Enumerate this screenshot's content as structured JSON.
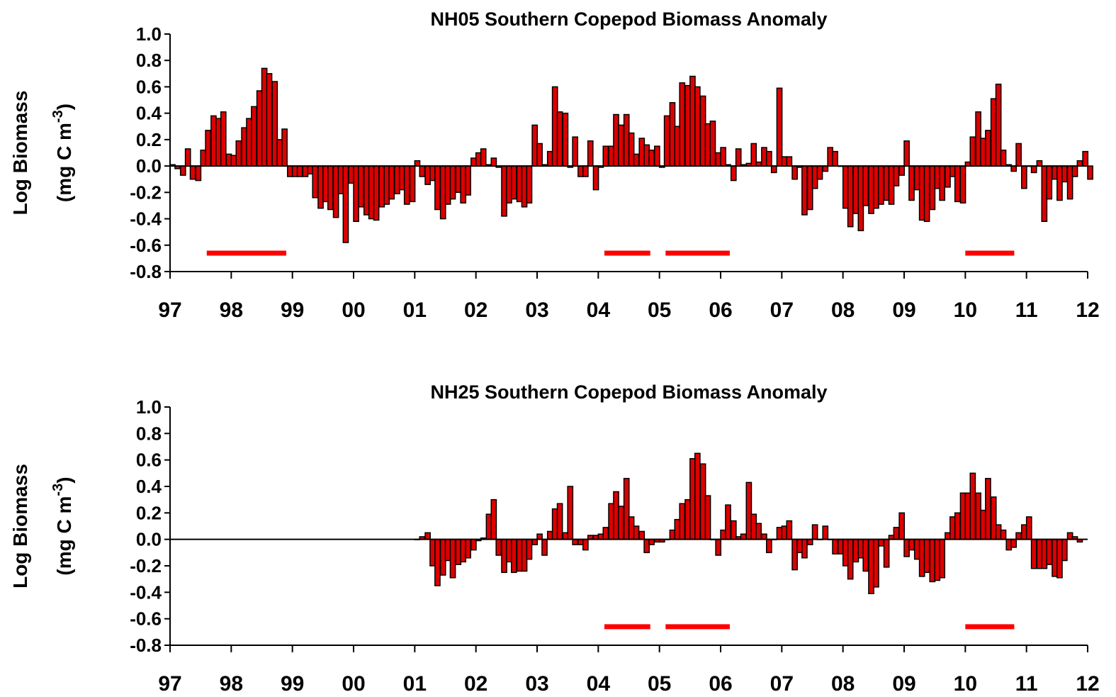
{
  "chart_data": [
    {
      "type": "bar",
      "title": "NH05 Southern Copepod Biomass Anomaly",
      "ylabel": "Log Biomass",
      "ylabel_unit": "(mg C m",
      "ylabel_superscript": "-3",
      "ylabel_end": ")",
      "color": "#dd0000",
      "x": [
        1997,
        1997.08,
        1997.17,
        1997.25,
        1997.33,
        1997.42,
        1997.5,
        1997.58,
        1997.67,
        1997.75,
        1997.83,
        1997.92,
        1998,
        1998.08,
        1998.17,
        1998.25,
        1998.33,
        1998.42,
        1998.5,
        1998.58,
        1998.67,
        1998.75,
        1998.83,
        1998.92,
        1999,
        1999.08,
        1999.17,
        1999.25,
        1999.33,
        1999.42,
        1999.5,
        1999.58,
        1999.67,
        1999.75,
        1999.83,
        1999.92,
        2000,
        2000.08,
        2000.17,
        2000.25,
        2000.33,
        2000.42,
        2000.5,
        2000.58,
        2000.67,
        2000.75,
        2000.83,
        2000.92,
        2001,
        2001.08,
        2001.17,
        2001.25,
        2001.33,
        2001.42,
        2001.5,
        2001.58,
        2001.67,
        2001.75,
        2001.83,
        2001.92,
        2002,
        2002.08,
        2002.17,
        2002.25,
        2002.33,
        2002.42,
        2002.5,
        2002.58,
        2002.67,
        2002.75,
        2002.83,
        2002.92,
        2003,
        2003.08,
        2003.17,
        2003.25,
        2003.33,
        2003.42,
        2003.5,
        2003.58,
        2003.67,
        2003.75,
        2003.83,
        2003.92,
        2004,
        2004.08,
        2004.17,
        2004.25,
        2004.33,
        2004.42,
        2004.5,
        2004.58,
        2004.67,
        2004.75,
        2004.83,
        2004.92,
        2005,
        2005.08,
        2005.17,
        2005.25,
        2005.33,
        2005.42,
        2005.5,
        2005.58,
        2005.67,
        2005.75,
        2005.83,
        2005.92,
        2006,
        2006.08,
        2006.17,
        2006.25,
        2006.33,
        2006.42,
        2006.5,
        2006.58,
        2006.67,
        2006.75,
        2006.83,
        2006.92,
        2007,
        2007.08,
        2007.17,
        2007.25,
        2007.33,
        2007.42,
        2007.5,
        2007.58,
        2007.67,
        2007.75,
        2007.83,
        2007.92,
        2008,
        2008.08,
        2008.17,
        2008.25,
        2008.33,
        2008.42,
        2008.5,
        2008.58,
        2008.67,
        2008.75,
        2008.83,
        2008.92,
        2009,
        2009.08,
        2009.17,
        2009.25,
        2009.33,
        2009.42,
        2009.5,
        2009.58,
        2009.67,
        2009.75,
        2009.83,
        2009.92,
        2010,
        2010.08,
        2010.17,
        2010.25,
        2010.33,
        2010.42,
        2010.5,
        2010.58,
        2010.67,
        2010.75,
        2010.83,
        2010.92,
        2011,
        2011.08,
        2011.17,
        2011.25,
        2011.33,
        2011.42,
        2011.5,
        2011.58,
        2011.67,
        2011.75,
        2011.83,
        2011.92,
        2012
      ],
      "values": [
        0.01,
        -0.02,
        -0.07,
        0.13,
        -0.1,
        -0.11,
        0.12,
        0.27,
        0.38,
        0.36,
        0.41,
        0.09,
        0.08,
        0.19,
        0.29,
        0.36,
        0.45,
        0.57,
        0.74,
        0.7,
        0.64,
        0.2,
        0.28,
        -0.08,
        -0.08,
        -0.08,
        -0.08,
        -0.06,
        -0.24,
        -0.32,
        -0.27,
        -0.33,
        -0.39,
        -0.21,
        -0.58,
        -0.13,
        -0.42,
        -0.31,
        -0.37,
        -0.4,
        -0.41,
        -0.31,
        -0.29,
        -0.25,
        -0.21,
        -0.18,
        -0.29,
        -0.27,
        0.04,
        -0.08,
        -0.14,
        -0.11,
        -0.33,
        -0.4,
        -0.29,
        -0.25,
        -0.2,
        -0.28,
        -0.22,
        0.06,
        0.1,
        0.13,
        0.01,
        0.06,
        -0.01,
        -0.38,
        -0.28,
        -0.25,
        -0.27,
        -0.31,
        -0.28,
        0.31,
        0.17,
        0.01,
        0.11,
        0.6,
        0.41,
        0.4,
        -0.01,
        0.22,
        -0.08,
        -0.08,
        0.19,
        -0.18,
        -0.01,
        0.15,
        0.15,
        0.39,
        0.31,
        0.39,
        0.25,
        0.09,
        0.21,
        0.16,
        0.12,
        0.15,
        -0.01,
        0.38,
        0.48,
        0.3,
        0.63,
        0.61,
        0.68,
        0.6,
        0.53,
        0.32,
        0.34,
        0.1,
        0.14,
        0.01,
        -0.11,
        0.13,
        0.01,
        0.02,
        0.17,
        0.03,
        0.14,
        0.11,
        -0.05,
        0.59,
        0.07,
        0.07,
        -0.1,
        -0.01,
        -0.37,
        -0.33,
        -0.17,
        -0.1,
        -0.04,
        0.14,
        0.11,
        0,
        -0.32,
        -0.46,
        -0.36,
        -0.49,
        -0.3,
        -0.36,
        -0.32,
        -0.29,
        -0.26,
        -0.29,
        -0.15,
        -0.07,
        0.19,
        -0.26,
        -0.18,
        -0.41,
        -0.42,
        -0.33,
        -0.17,
        -0.26,
        -0.16,
        -0.08,
        -0.27,
        -0.28,
        0.03,
        0.22,
        0.41,
        0.21,
        0.27,
        0.51,
        0.62,
        0.12,
        0.01,
        -0.04,
        0.17,
        -0.17,
        0,
        -0.05,
        0.04,
        -0.42,
        -0.25,
        -0.1,
        -0.26,
        -0.12,
        -0.25,
        -0.08,
        0.04,
        0.11,
        -0.1
      ],
      "xlim": [
        1997,
        2012
      ],
      "xticks": [
        {
          "value": 1997,
          "label": "97"
        },
        {
          "value": 1998,
          "label": "98"
        },
        {
          "value": 1999,
          "label": "99"
        },
        {
          "value": 2000,
          "label": "00"
        },
        {
          "value": 2001,
          "label": "01"
        },
        {
          "value": 2002,
          "label": "02"
        },
        {
          "value": 2003,
          "label": "03"
        },
        {
          "value": 2004,
          "label": "04"
        },
        {
          "value": 2005,
          "label": "05"
        },
        {
          "value": 2006,
          "label": "06"
        },
        {
          "value": 2007,
          "label": "07"
        },
        {
          "value": 2008,
          "label": "08"
        },
        {
          "value": 2009,
          "label": "09"
        },
        {
          "value": 2010,
          "label": "10"
        },
        {
          "value": 2011,
          "label": "11"
        },
        {
          "value": 2012,
          "label": "12"
        }
      ],
      "ylim": [
        -0.8,
        1.0
      ],
      "yticks": [
        {
          "value": 1.0,
          "label": "1.0"
        },
        {
          "value": 0.8,
          "label": "0.8"
        },
        {
          "value": 0.6,
          "label": "0.6"
        },
        {
          "value": 0.4,
          "label": "0.4"
        },
        {
          "value": 0.2,
          "label": "0.2"
        },
        {
          "value": 0,
          "label": "0.0"
        },
        {
          "value": -0.2,
          "label": "-0.2"
        },
        {
          "value": -0.4,
          "label": "-0.4"
        },
        {
          "value": -0.6,
          "label": "-0.6"
        },
        {
          "value": -0.8,
          "label": "-0.8"
        }
      ],
      "highlight_color": "#ff0000",
      "highlight_level": -0.66,
      "highlight_periods": [
        [
          1997.6,
          1998.9
        ],
        [
          2004.1,
          2004.85
        ],
        [
          2005.1,
          2006.15
        ],
        [
          2010.0,
          2010.8
        ]
      ]
    },
    {
      "type": "bar",
      "title": "NH25 Southern Copepod Biomass Anomaly",
      "ylabel": "Log Biomass",
      "ylabel_unit": "(mg C m",
      "ylabel_superscript": "-3",
      "ylabel_end": ")",
      "color": "#dd0000",
      "x": [
        2001,
        2001.08,
        2001.17,
        2001.25,
        2001.33,
        2001.42,
        2001.5,
        2001.58,
        2001.67,
        2001.75,
        2001.83,
        2001.92,
        2002,
        2002.08,
        2002.17,
        2002.25,
        2002.33,
        2002.42,
        2002.5,
        2002.58,
        2002.67,
        2002.75,
        2002.83,
        2002.92,
        2003,
        2003.08,
        2003.17,
        2003.25,
        2003.33,
        2003.42,
        2003.5,
        2003.58,
        2003.67,
        2003.75,
        2003.83,
        2003.92,
        2004,
        2004.08,
        2004.17,
        2004.25,
        2004.33,
        2004.42,
        2004.5,
        2004.58,
        2004.67,
        2004.75,
        2004.83,
        2004.92,
        2005,
        2005.08,
        2005.17,
        2005.25,
        2005.33,
        2005.42,
        2005.5,
        2005.58,
        2005.67,
        2005.75,
        2005.83,
        2005.92,
        2006,
        2006.08,
        2006.17,
        2006.25,
        2006.33,
        2006.42,
        2006.5,
        2006.58,
        2006.67,
        2006.75,
        2006.83,
        2006.92,
        2007,
        2007.08,
        2007.17,
        2007.25,
        2007.33,
        2007.42,
        2007.5,
        2007.58,
        2007.67,
        2007.75,
        2007.83,
        2007.92,
        2008,
        2008.08,
        2008.17,
        2008.25,
        2008.33,
        2008.42,
        2008.5,
        2008.58,
        2008.67,
        2008.75,
        2008.83,
        2008.92,
        2009,
        2009.08,
        2009.17,
        2009.25,
        2009.33,
        2009.42,
        2009.5,
        2009.58,
        2009.67,
        2009.75,
        2009.83,
        2009.92,
        2010,
        2010.08,
        2010.17,
        2010.25,
        2010.33,
        2010.42,
        2010.5,
        2010.58,
        2010.67,
        2010.75,
        2010.83,
        2010.92,
        2011,
        2011.08,
        2011.17,
        2011.25,
        2011.33,
        2011.42,
        2011.5,
        2011.58,
        2011.67,
        2011.75,
        2011.83
      ],
      "values": [
        0,
        0.02,
        0.05,
        -0.2,
        -0.35,
        -0.27,
        -0.16,
        -0.29,
        -0.19,
        -0.17,
        -0.14,
        -0.08,
        -0.01,
        0.01,
        0.19,
        0.3,
        -0.12,
        -0.25,
        -0.17,
        -0.25,
        -0.24,
        -0.24,
        -0.15,
        -0.04,
        0.04,
        -0.12,
        0.06,
        0.23,
        0.27,
        0.05,
        0.4,
        -0.04,
        -0.04,
        -0.08,
        0.03,
        0.03,
        0.04,
        0.09,
        0.27,
        0.36,
        0.25,
        0.46,
        0.17,
        0.1,
        0.06,
        -0.1,
        -0.04,
        -0.02,
        -0.02,
        0,
        0.07,
        0.15,
        0.27,
        0.3,
        0.61,
        0.65,
        0.57,
        0.33,
        0,
        -0.12,
        0.07,
        0.26,
        0.14,
        0.02,
        0.04,
        0.43,
        0.19,
        0.12,
        0.04,
        -0.1,
        0,
        0.09,
        0.1,
        0.14,
        -0.23,
        -0.1,
        -0.14,
        -0.04,
        0.11,
        0,
        0.1,
        0,
        -0.11,
        -0.11,
        -0.2,
        -0.3,
        -0.17,
        -0.14,
        -0.24,
        -0.41,
        -0.36,
        -0.05,
        -0.21,
        0.03,
        0.09,
        0.2,
        -0.13,
        -0.08,
        -0.15,
        -0.28,
        -0.25,
        -0.32,
        -0.31,
        -0.29,
        0.05,
        0.17,
        0.2,
        0.35,
        0.35,
        0.5,
        0.35,
        0.22,
        0.46,
        0.32,
        0.11,
        0.07,
        -0.08,
        -0.06,
        0.05,
        0.11,
        0.17,
        -0.22,
        -0.22,
        -0.22,
        -0.19,
        -0.28,
        -0.29,
        -0.16,
        0.05,
        0.02,
        -0.02
      ],
      "xlim": [
        1997,
        2012
      ],
      "xticks": [
        {
          "value": 1997,
          "label": "97"
        },
        {
          "value": 1998,
          "label": "98"
        },
        {
          "value": 1999,
          "label": "99"
        },
        {
          "value": 2000,
          "label": "00"
        },
        {
          "value": 2001,
          "label": "01"
        },
        {
          "value": 2002,
          "label": "02"
        },
        {
          "value": 2003,
          "label": "03"
        },
        {
          "value": 2004,
          "label": "04"
        },
        {
          "value": 2005,
          "label": "05"
        },
        {
          "value": 2006,
          "label": "06"
        },
        {
          "value": 2007,
          "label": "07"
        },
        {
          "value": 2008,
          "label": "08"
        },
        {
          "value": 2009,
          "label": "09"
        },
        {
          "value": 2010,
          "label": "10"
        },
        {
          "value": 2011,
          "label": "11"
        },
        {
          "value": 2012,
          "label": "12"
        }
      ],
      "ylim": [
        -0.8,
        1.0
      ],
      "yticks": [
        {
          "value": 1.0,
          "label": "1.0"
        },
        {
          "value": 0.8,
          "label": "0.8"
        },
        {
          "value": 0.6,
          "label": "0.6"
        },
        {
          "value": 0.4,
          "label": "0.4"
        },
        {
          "value": 0.2,
          "label": "0.2"
        },
        {
          "value": 0,
          "label": "0.0"
        },
        {
          "value": -0.2,
          "label": "-0.2"
        },
        {
          "value": -0.4,
          "label": "-0.4"
        },
        {
          "value": -0.6,
          "label": "-0.6"
        },
        {
          "value": -0.8,
          "label": "-0.8"
        }
      ],
      "highlight_color": "#ff0000",
      "highlight_level": -0.66,
      "highlight_periods": [
        [
          2004.1,
          2004.85
        ],
        [
          2005.1,
          2006.15
        ],
        [
          2010.0,
          2010.8
        ]
      ]
    }
  ]
}
